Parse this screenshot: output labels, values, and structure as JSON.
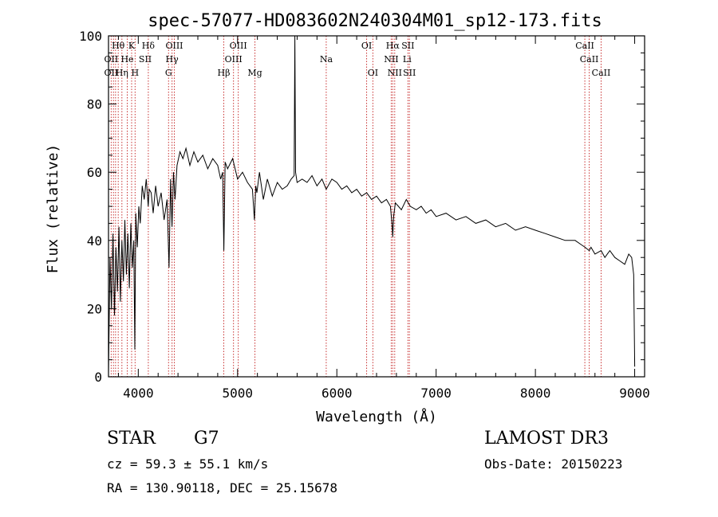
{
  "chart_data": {
    "type": "line",
    "title": "spec-57077-HD083602N240304M01_sp12-173.fits",
    "xlabel": "Wavelength (Å)",
    "ylabel": "Flux (relative)",
    "xlim": [
      3700,
      9100
    ],
    "ylim": [
      0,
      100
    ],
    "xticks": [
      4000,
      5000,
      6000,
      7000,
      8000,
      9000
    ],
    "yticks": [
      0,
      20,
      40,
      60,
      80,
      100
    ],
    "grid": false,
    "series": [
      {
        "name": "flux",
        "x": [
          3700,
          3715,
          3730,
          3745,
          3760,
          3775,
          3790,
          3805,
          3820,
          3835,
          3850,
          3865,
          3880,
          3895,
          3910,
          3925,
          3940,
          3955,
          3965,
          3975,
          3990,
          4005,
          4020,
          4040,
          4060,
          4080,
          4100,
          4110,
          4130,
          4150,
          4175,
          4200,
          4230,
          4260,
          4290,
          4310,
          4325,
          4340,
          4355,
          4370,
          4390,
          4420,
          4450,
          4480,
          4520,
          4560,
          4600,
          4650,
          4700,
          4750,
          4800,
          4830,
          4850,
          4862,
          4875,
          4900,
          4950,
          5000,
          5050,
          5100,
          5150,
          5170,
          5183,
          5195,
          5220,
          5260,
          5300,
          5350,
          5400,
          5450,
          5500,
          5540,
          5570,
          5577,
          5584,
          5600,
          5650,
          5700,
          5750,
          5800,
          5850,
          5893,
          5950,
          6000,
          6050,
          6100,
          6150,
          6200,
          6250,
          6300,
          6350,
          6400,
          6450,
          6500,
          6540,
          6555,
          6563,
          6572,
          6590,
          6620,
          6650,
          6700,
          6720,
          6740,
          6800,
          6850,
          6900,
          6950,
          7000,
          7100,
          7200,
          7300,
          7400,
          7500,
          7600,
          7700,
          7800,
          7900,
          8000,
          8100,
          8200,
          8300,
          8400,
          8450,
          8500,
          8542,
          8560,
          8600,
          8662,
          8700,
          8750,
          8800,
          8850,
          8900,
          8940,
          8970,
          8990,
          9000
        ],
        "values": [
          1,
          35,
          20,
          42,
          18,
          38,
          25,
          44,
          22,
          40,
          28,
          46,
          30,
          42,
          26,
          45,
          32,
          40,
          8,
          48,
          38,
          50,
          45,
          56,
          52,
          58,
          50,
          55,
          54,
          48,
          56,
          50,
          54,
          46,
          52,
          32,
          58,
          44,
          60,
          52,
          62,
          66,
          64,
          67,
          62,
          66,
          63,
          65,
          61,
          64,
          62,
          58,
          60,
          37,
          63,
          61,
          64,
          58,
          60,
          57,
          55,
          46,
          56,
          54,
          60,
          52,
          58,
          53,
          57,
          55,
          56,
          58,
          59,
          100,
          60,
          57,
          58,
          57,
          59,
          56,
          58,
          55,
          58,
          57,
          55,
          56,
          54,
          55,
          53,
          54,
          52,
          53,
          51,
          52,
          50,
          45,
          41,
          47,
          51,
          50,
          49,
          52,
          51,
          50,
          49,
          50,
          48,
          49,
          47,
          48,
          46,
          47,
          45,
          46,
          44,
          45,
          43,
          44,
          43,
          42,
          41,
          40,
          40,
          39,
          38,
          37,
          38,
          36,
          37,
          35,
          37,
          35,
          34,
          33,
          36,
          35,
          30,
          3
        ]
      }
    ],
    "line_labels": [
      {
        "text": "Hθ",
        "x": 3798,
        "row": 1
      },
      {
        "text": "K",
        "x": 3933,
        "row": 1
      },
      {
        "text": "Hδ",
        "x": 4101,
        "row": 1
      },
      {
        "text": "OIII",
        "x": 4363,
        "row": 1
      },
      {
        "text": "OIII",
        "x": 5007,
        "row": 1
      },
      {
        "text": "OI",
        "x": 6300,
        "row": 1
      },
      {
        "text": "Hα",
        "x": 6563,
        "row": 1
      },
      {
        "text": "SII",
        "x": 6716,
        "row": 1
      },
      {
        "text": "CaII",
        "x": 8498,
        "row": 1
      },
      {
        "text": "OII",
        "x": 3727,
        "row": 2
      },
      {
        "text": "He",
        "x": 3889,
        "row": 2
      },
      {
        "text": "SII",
        "x": 4070,
        "row": 2
      },
      {
        "text": "Hγ",
        "x": 4340,
        "row": 2
      },
      {
        "text": "OIII",
        "x": 4959,
        "row": 2
      },
      {
        "text": "Na",
        "x": 5893,
        "row": 2
      },
      {
        "text": "NII",
        "x": 6548,
        "row": 2
      },
      {
        "text": "Li",
        "x": 6708,
        "row": 2
      },
      {
        "text": "CaII",
        "x": 8542,
        "row": 2
      },
      {
        "text": "OII",
        "x": 3727,
        "row": 3
      },
      {
        "text": "Hη",
        "x": 3835,
        "row": 3
      },
      {
        "text": "H",
        "x": 3968,
        "row": 3
      },
      {
        "text": "G",
        "x": 4305,
        "row": 3
      },
      {
        "text": "Hβ",
        "x": 4861,
        "row": 3
      },
      {
        "text": "Mg",
        "x": 5175,
        "row": 3
      },
      {
        "text": "OI",
        "x": 6363,
        "row": 3
      },
      {
        "text": "NII",
        "x": 6583,
        "row": 3
      },
      {
        "text": "SII",
        "x": 6731,
        "row": 3
      },
      {
        "text": "CaII",
        "x": 8662,
        "row": 3
      }
    ],
    "line_markers": [
      3727,
      3750,
      3771,
      3798,
      3835,
      3889,
      3933,
      3968,
      4101,
      4305,
      4340,
      4363,
      4861,
      4959,
      5007,
      5175,
      5893,
      6300,
      6363,
      6548,
      6563,
      6583,
      6716,
      6731,
      8498,
      8542,
      8662
    ]
  },
  "footer": {
    "object_class": "STAR",
    "subclass": "G7",
    "survey": "LAMOST DR3",
    "redshift": "cz = 59.3 ± 55.1 km/s",
    "obs_date": "Obs-Date: 20150223",
    "coordinates": "RA = 130.90118, DEC =  25.15678"
  },
  "colors": {
    "axis": "#000000",
    "marker": "#c83232",
    "spectrum": "#000000"
  }
}
